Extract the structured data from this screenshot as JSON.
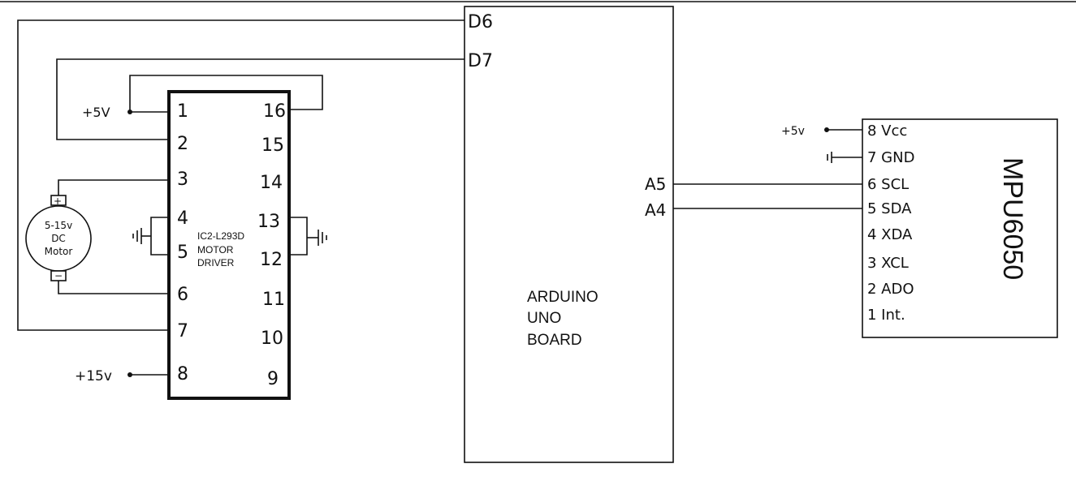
{
  "arduino": {
    "label_lines": [
      "ARDUINO",
      "UNO",
      "BOARD"
    ],
    "pins": {
      "d6": "D6",
      "d7": "D7",
      "a5": "A5",
      "a4": "A4"
    }
  },
  "driver": {
    "label_lines": [
      "IC2-L293D",
      "MOTOR",
      "DRIVER"
    ],
    "left_pins": [
      "1",
      "2",
      "3",
      "4",
      "5",
      "6",
      "7",
      "8"
    ],
    "right_pins": [
      "16",
      "15",
      "14",
      "13",
      "12",
      "11",
      "10",
      "9"
    ]
  },
  "motor": {
    "label_lines": [
      "5-15v",
      "DC",
      "Motor"
    ],
    "plus": "+",
    "minus": "−"
  },
  "supply": {
    "plus5v_driver": "+5V",
    "plus15v": "+15v",
    "plus5v_mpu": "+5v"
  },
  "mpu": {
    "name": "MPU6050",
    "pins": [
      "8 Vcc",
      "7 GND",
      "6 SCL",
      "5 SDA",
      "4 XDA",
      "3 XCL",
      "2 ADO",
      "1 Int."
    ]
  }
}
